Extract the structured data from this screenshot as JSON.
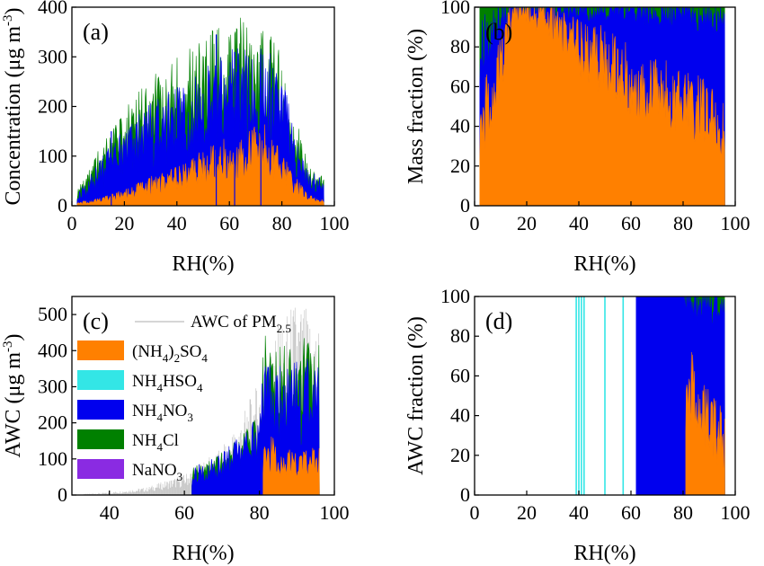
{
  "colors": {
    "ammonium_sulfate": "#FF8000",
    "ammonium_bisulfate": "#33E6E6",
    "ammonium_nitrate": "#0000EE",
    "ammonium_chloride": "#008000",
    "sodium_nitrate": "#8A2BE2",
    "awc_total": "#C8C8C8"
  },
  "chart_data": [
    {
      "panel": "a",
      "panel_label": "(a)",
      "type": "area",
      "xlabel": "RH(%)",
      "ylabel": "Concentration (μg m-3)",
      "ylabel_parts": {
        "base": "Concentration (μg m",
        "sup": "-3",
        "end": ")"
      },
      "xlim": [
        0,
        100
      ],
      "ylim": [
        0,
        400
      ],
      "xticks": [
        0,
        20,
        40,
        60,
        80,
        100
      ],
      "yticks": [
        0,
        100,
        200,
        300,
        400
      ],
      "x_range": [
        2,
        96
      ],
      "series": [
        {
          "color_key": "ammonium_sulfate",
          "x": [
            2,
            10,
            20,
            30,
            40,
            50,
            60,
            70,
            75,
            80,
            85,
            90,
            96
          ],
          "y": [
            5,
            10,
            22,
            40,
            55,
            75,
            95,
            110,
            110,
            75,
            40,
            15,
            8
          ]
        },
        {
          "color_key": "ammonium_nitrate",
          "x": [
            2,
            10,
            20,
            30,
            40,
            50,
            60,
            70,
            75,
            80,
            85,
            90,
            96
          ],
          "y": [
            15,
            60,
            105,
            140,
            160,
            185,
            210,
            215,
            210,
            175,
            110,
            50,
            35
          ]
        },
        {
          "color_key": "ammonium_chloride",
          "x": [
            2,
            10,
            20,
            30,
            40,
            50,
            60,
            70,
            75,
            80,
            85,
            90,
            96
          ],
          "y": [
            20,
            75,
            130,
            175,
            200,
            225,
            255,
            250,
            240,
            200,
            125,
            55,
            40
          ]
        }
      ],
      "spikes": [
        [
          15,
          150
        ],
        [
          55,
          345
        ],
        [
          62,
          310
        ],
        [
          72,
          305
        ]
      ]
    },
    {
      "panel": "b",
      "panel_label": "(b)",
      "type": "area",
      "xlabel": "RH(%)",
      "ylabel": "Mass fraction (%)",
      "xlim": [
        0,
        100
      ],
      "ylim": [
        0,
        100
      ],
      "xticks": [
        0,
        20,
        40,
        60,
        80,
        100
      ],
      "yticks": [
        0,
        20,
        40,
        60,
        80,
        100
      ],
      "x_range": [
        2,
        96
      ],
      "series": [
        {
          "color_key": "ammonium_sulfate",
          "x": [
            2,
            8,
            15,
            20,
            30,
            40,
            50,
            60,
            70,
            80,
            90,
            96
          ],
          "y": [
            40,
            60,
            98,
            98,
            92,
            80,
            72,
            63,
            57,
            53,
            44,
            33
          ]
        },
        {
          "color_key": "ammonium_nitrate",
          "x": [
            2,
            8,
            15,
            20,
            30,
            40,
            50,
            60,
            70,
            80,
            90,
            96
          ],
          "y": [
            78,
            90,
            99,
            99,
            99,
            98,
            98,
            98,
            97,
            96,
            95,
            93
          ]
        },
        {
          "color_key": "ammonium_chloride",
          "x": [
            2,
            8,
            15,
            20,
            30,
            40,
            50,
            60,
            70,
            80,
            90,
            96
          ],
          "y": [
            100,
            100,
            100,
            100,
            100,
            100,
            100,
            100,
            100,
            100,
            100,
            100
          ]
        }
      ]
    },
    {
      "panel": "c",
      "panel_label": "(c)",
      "type": "area",
      "xlabel": "RH(%)",
      "ylabel": "AWC (μg m-3)",
      "ylabel_parts": {
        "base": "AWC (μg m",
        "sup": "-3",
        "end": ")"
      },
      "xlim": [
        30,
        100
      ],
      "ylim": [
        0,
        550
      ],
      "xticks": [
        40,
        60,
        80,
        100
      ],
      "yticks": [
        0,
        100,
        200,
        300,
        400,
        500
      ],
      "total_line": {
        "name": "AWC of PM2.5",
        "color_key": "awc_total",
        "x": [
          33,
          40,
          50,
          60,
          70,
          75,
          80,
          85,
          90,
          95,
          96
        ],
        "y": [
          2,
          5,
          15,
          40,
          90,
          150,
          220,
          330,
          380,
          340,
          330
        ]
      },
      "series": [
        {
          "color_key": "ammonium_sulfate",
          "x": [
            81,
            85,
            90,
            95,
            96
          ],
          "y": [
            120,
            100,
            80,
            90,
            95
          ]
        },
        {
          "color_key": "ammonium_nitrate",
          "x": [
            62,
            66,
            70,
            75,
            80,
            81,
            85,
            90,
            95,
            96
          ],
          "y": [
            50,
            65,
            80,
            110,
            150,
            260,
            240,
            250,
            260,
            270
          ]
        },
        {
          "color_key": "ammonium_chloride",
          "x": [
            62,
            66,
            70,
            75,
            80,
            81,
            85,
            90,
            95,
            96
          ],
          "y": [
            50,
            65,
            80,
            110,
            155,
            300,
            275,
            290,
            300,
            310
          ]
        }
      ],
      "legend": [
        {
          "label": "AWC of PM",
          "sub": "2.5",
          "after": "",
          "color_key": "awc_total",
          "kind": "line"
        },
        {
          "label": "(NH",
          "sub": "4",
          "after": ")",
          "sub2": "2",
          "after2": "SO",
          "sub3": "4",
          "color_key": "ammonium_sulfate",
          "kind": "box"
        },
        {
          "label": "NH",
          "sub": "4",
          "after": "HSO",
          "sub2": "4",
          "color_key": "ammonium_bisulfate",
          "kind": "box"
        },
        {
          "label": "NH",
          "sub": "4",
          "after": "NO",
          "sub2": "3",
          "color_key": "ammonium_nitrate",
          "kind": "box"
        },
        {
          "label": "NH",
          "sub": "4",
          "after": "Cl",
          "color_key": "ammonium_chloride",
          "kind": "box"
        },
        {
          "label": "NaNO",
          "sub": "3",
          "after": "",
          "color_key": "sodium_nitrate",
          "kind": "box"
        }
      ]
    },
    {
      "panel": "d",
      "panel_label": "(d)",
      "type": "area",
      "xlabel": "RH(%)",
      "ylabel": "AWC fraction (%)",
      "xlim": [
        0,
        100
      ],
      "ylim": [
        0,
        100
      ],
      "xticks": [
        0,
        20,
        40,
        60,
        80,
        100
      ],
      "yticks": [
        0,
        20,
        40,
        60,
        80,
        100
      ],
      "bisulfate_lines_x": [
        39,
        40,
        41,
        42,
        50,
        57
      ],
      "series": [
        {
          "color_key": "ammonium_sulfate",
          "x": [
            81,
            83,
            85,
            88,
            90,
            93,
            96
          ],
          "y": [
            50,
            55,
            50,
            40,
            38,
            30,
            25
          ]
        },
        {
          "color_key": "ammonium_nitrate",
          "x": [
            62,
            70,
            80,
            81,
            85,
            90,
            96
          ],
          "y": [
            100,
            100,
            100,
            96,
            94,
            95,
            92
          ]
        },
        {
          "color_key": "ammonium_chloride",
          "x": [
            62,
            70,
            80,
            81,
            85,
            90,
            96
          ],
          "y": [
            100,
            100,
            100,
            100,
            100,
            100,
            100
          ]
        }
      ]
    }
  ]
}
